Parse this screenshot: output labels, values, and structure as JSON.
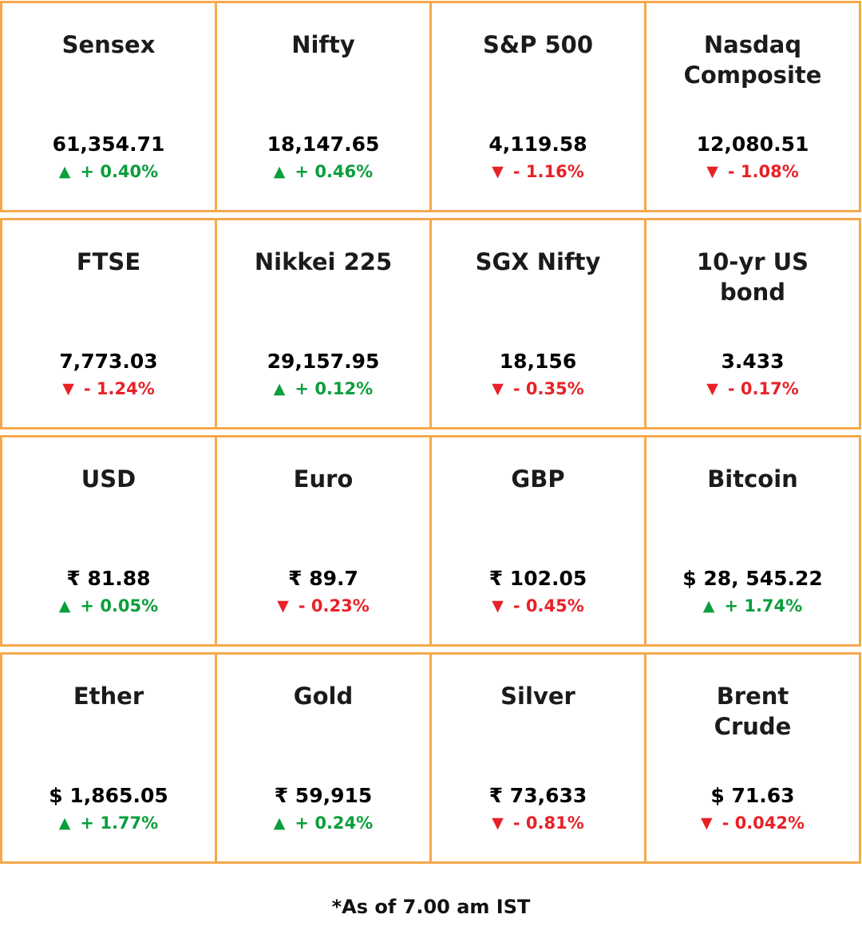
{
  "chart_data": {
    "type": "table",
    "note": "*As of 7.00 am IST",
    "columns": [
      "instrument",
      "value",
      "direction",
      "change"
    ],
    "cells": [
      {
        "label": "Sensex",
        "value": "61,354.71",
        "direction": "up",
        "change": "+ 0.40%"
      },
      {
        "label": "Nifty",
        "value": "18,147.65",
        "direction": "up",
        "change": "+ 0.46%"
      },
      {
        "label": "S&P 500",
        "value": "4,119.58",
        "direction": "down",
        "change": "- 1.16%"
      },
      {
        "label": "Nasdaq Composite",
        "value": "12,080.51",
        "direction": "down",
        "change": "- 1.08%"
      },
      {
        "label": "FTSE",
        "value": "7,773.03",
        "direction": "down",
        "change": "- 1.24%"
      },
      {
        "label": "Nikkei 225",
        "value": "29,157.95",
        "direction": "up",
        "change": "+ 0.12%"
      },
      {
        "label": "SGX Nifty",
        "value": "18,156",
        "direction": "down",
        "change": "- 0.35%"
      },
      {
        "label": "10-yr US bond",
        "value": "3.433",
        "direction": "down",
        "change": "- 0.17%"
      },
      {
        "label": "USD",
        "value": "₹ 81.88",
        "direction": "up",
        "change": "+ 0.05%"
      },
      {
        "label": "Euro",
        "value": "₹ 89.7",
        "direction": "down",
        "change": "- 0.23%"
      },
      {
        "label": "GBP",
        "value": "₹ 102.05",
        "direction": "down",
        "change": "- 0.45%"
      },
      {
        "label": "Bitcoin",
        "value": "$ 28, 545.22",
        "direction": "up",
        "change": "+ 1.74%"
      },
      {
        "label": "Ether",
        "value": "$ 1,865.05",
        "direction": "up",
        "change": "+ 1.77%"
      },
      {
        "label": "Gold",
        "value": "₹ 59,915",
        "direction": "up",
        "change": "+ 0.24%"
      },
      {
        "label": "Silver",
        "value": "₹ 73,633",
        "direction": "down",
        "change": "- 0.81%"
      },
      {
        "label": "Brent Crude",
        "value": "$ 71.63",
        "direction": "down",
        "change": "- 0.042%"
      }
    ]
  },
  "colors": {
    "up": "#0a9e3c",
    "down": "#e82127",
    "border": "#f5a84c",
    "text": "#1b1b1b"
  }
}
